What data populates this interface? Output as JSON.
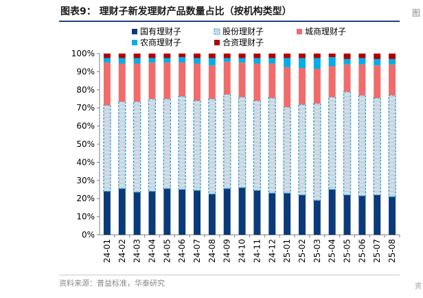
{
  "title": "图表9： 理财子新发理财产品数量占比（按机构类型）",
  "source": "资料来源：普益标准，华泰研究",
  "colors": {
    "国有理财子": "#0a3a7a",
    "股份理财子": "#c8d4de",
    "城商理财子": "#f26b6b",
    "农商理财子": "#00aee8",
    "合资理财子": "#b00000"
  },
  "chart_data": {
    "type": "bar",
    "stacked": true,
    "categories": [
      "24-01",
      "24-02",
      "24-03",
      "24-04",
      "24-05",
      "24-06",
      "24-07",
      "24-08",
      "24-09",
      "24-10",
      "24-11",
      "24-12",
      "25-01",
      "25-02",
      "25-03",
      "25-04",
      "25-05",
      "25-06",
      "25-07",
      "25-08"
    ],
    "series": [
      {
        "name": "国有理财子",
        "values": [
          24,
          25.5,
          23.5,
          24,
          25.5,
          25,
          24.5,
          22.5,
          25.5,
          26,
          24.5,
          23,
          23,
          22,
          19,
          25,
          22,
          21.5,
          22,
          21
        ]
      },
      {
        "name": "股份理财子",
        "values": [
          47.5,
          48,
          50,
          51,
          49.5,
          51.5,
          49.5,
          52.5,
          52,
          50,
          49.5,
          52.5,
          47.5,
          50,
          53.5,
          51,
          57,
          55.5,
          53.5,
          56
        ]
      },
      {
        "name": "城商理财子",
        "values": [
          23.5,
          21,
          21,
          20,
          20,
          18.5,
          20.5,
          18.5,
          18,
          19,
          20.5,
          19,
          22,
          20,
          19,
          17,
          15,
          17,
          18,
          17
        ]
      },
      {
        "name": "农商理财子",
        "values": [
          2.5,
          3,
          3,
          2.5,
          2.5,
          3,
          3,
          4,
          2,
          2.5,
          3,
          3,
          5,
          5.5,
          6,
          5,
          3,
          3.5,
          3.5,
          3
        ]
      },
      {
        "name": "合资理财子",
        "values": [
          2.5,
          2.5,
          2.5,
          2.5,
          2.5,
          2,
          2.5,
          2.5,
          2.5,
          2.5,
          2.5,
          2.5,
          2.5,
          2.5,
          2.5,
          2,
          3,
          2.5,
          3,
          3
        ]
      }
    ],
    "ylim": [
      0,
      100
    ],
    "yticks": [
      "0%",
      "10%",
      "20%",
      "30%",
      "40%",
      "50%",
      "60%",
      "70%",
      "80%",
      "90%",
      "100%"
    ],
    "legend": {
      "position": "top"
    },
    "grid": false
  }
}
